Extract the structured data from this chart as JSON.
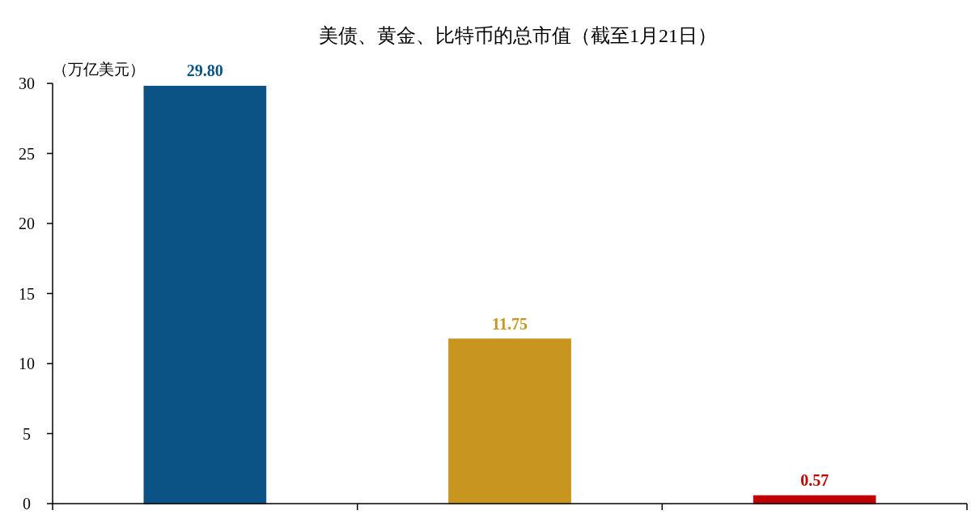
{
  "chart_data": {
    "type": "bar",
    "title": "美债、黄金、比特币的总市值（截至1月21日）",
    "ylabel": "（万亿美元）",
    "categories": [
      null,
      null,
      null
    ],
    "values": [
      29.8,
      11.75,
      0.57
    ],
    "colors": [
      "#0b5384",
      "#c8961e",
      "#c00000"
    ],
    "value_labels": [
      "29.80",
      "11.75",
      "0.57"
    ],
    "ylim": [
      0,
      30
    ],
    "yticks": [
      0,
      5,
      10,
      15,
      20,
      25,
      30
    ],
    "grid": false
  }
}
